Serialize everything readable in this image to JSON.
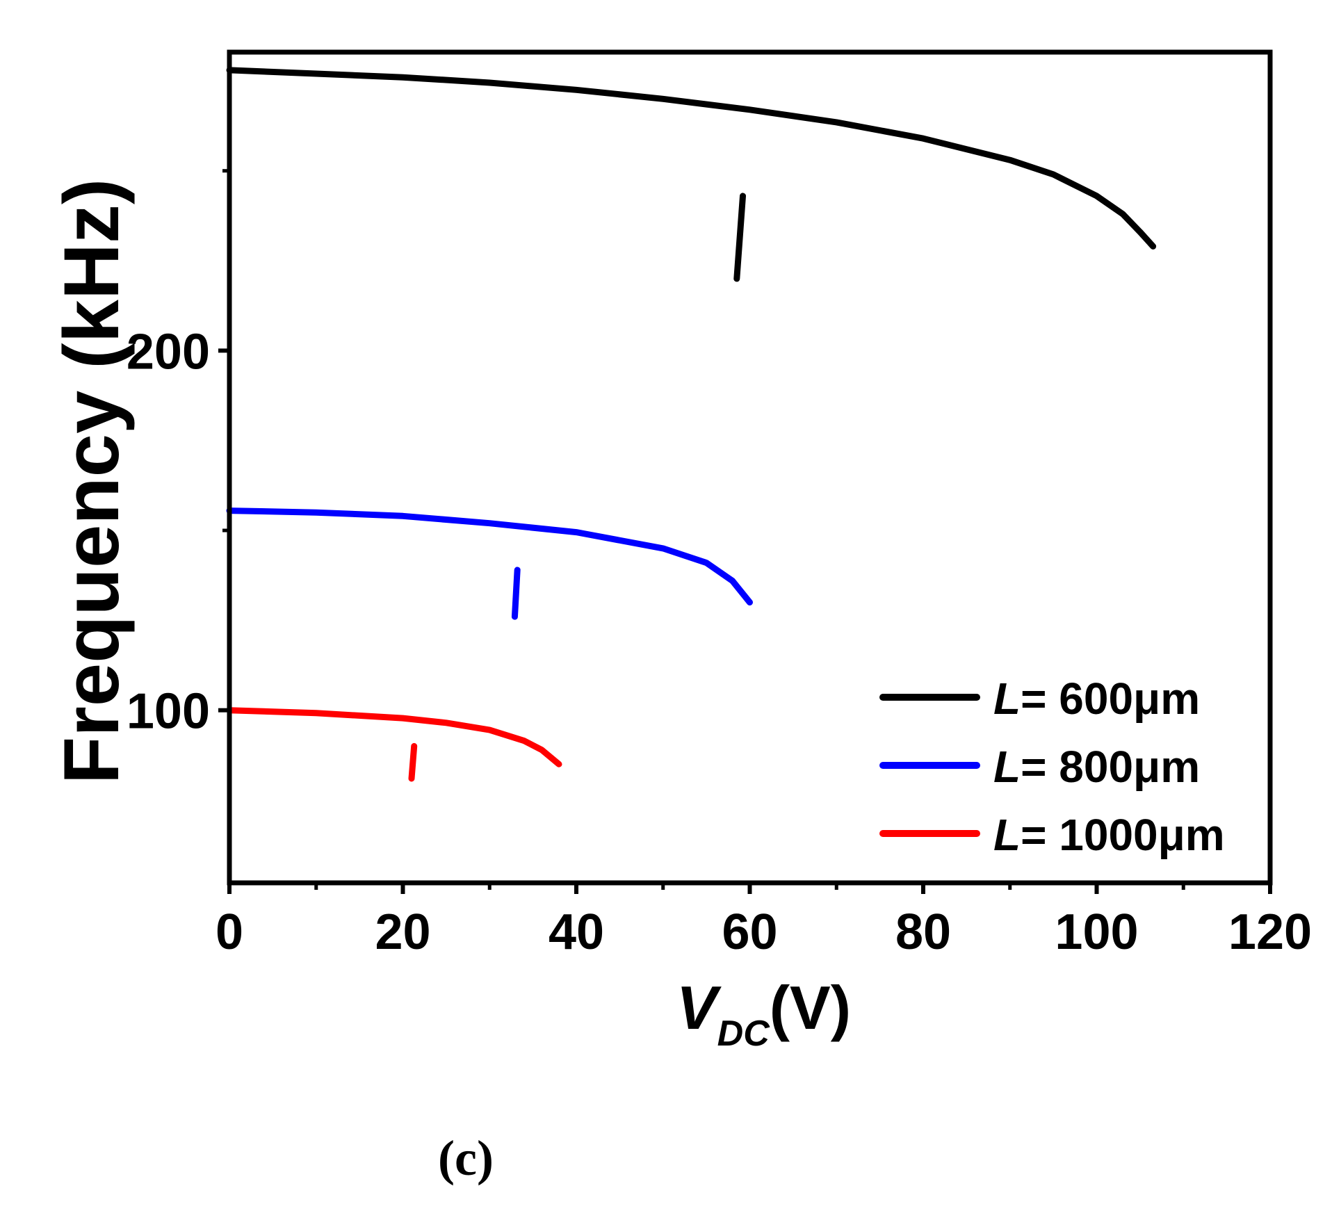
{
  "chart_data": {
    "type": "line",
    "title": "",
    "xlabel_main": "V",
    "xlabel_sub": "DC",
    "xlabel_unit": "(V)",
    "ylabel": "Frequency (kHz)",
    "xlim": [
      0,
      120
    ],
    "ylim": [
      52,
      283
    ],
    "x_ticks": [
      0,
      20,
      40,
      60,
      80,
      100,
      120
    ],
    "y_ticks": [
      100,
      200
    ],
    "y_minor_ticks": [
      50,
      150,
      250
    ],
    "grid": false,
    "legend_position": "bottom-right",
    "series": [
      {
        "name": "L= 600μm",
        "legend_italic": "L",
        "legend_rest": "= 600μm",
        "color": "#000000",
        "x": [
          0,
          10,
          20,
          30,
          40,
          50,
          60,
          70,
          80,
          90,
          95,
          100,
          103,
          105,
          106.5
        ],
        "y": [
          278,
          277,
          276,
          274.5,
          272.5,
          270,
          267,
          263.5,
          259,
          253,
          249,
          243,
          238,
          233,
          229
        ],
        "jump": {
          "x": [
            58.5,
            59.2
          ],
          "y": [
            220,
            243
          ]
        }
      },
      {
        "name": "L= 800μm",
        "legend_italic": "L",
        "legend_rest": "= 800μm",
        "color": "#0000ff",
        "x": [
          0,
          10,
          20,
          30,
          40,
          50,
          55,
          58,
          60
        ],
        "y": [
          155.5,
          155,
          154,
          152,
          149.5,
          145,
          141,
          136,
          130
        ],
        "jump": {
          "x": [
            32.9,
            33.2
          ],
          "y": [
            126,
            139
          ]
        }
      },
      {
        "name": "L= 1000μm",
        "legend_italic": "L",
        "legend_rest": "= 1000μm",
        "color": "#ff0000",
        "x": [
          0,
          10,
          20,
          25,
          30,
          34,
          36,
          38
        ],
        "y": [
          100,
          99.2,
          97.8,
          96.5,
          94.5,
          91.5,
          89,
          85
        ],
        "jump": {
          "x": [
            21.0,
            21.3
          ],
          "y": [
            81,
            90
          ]
        }
      }
    ]
  },
  "caption": "(c)"
}
